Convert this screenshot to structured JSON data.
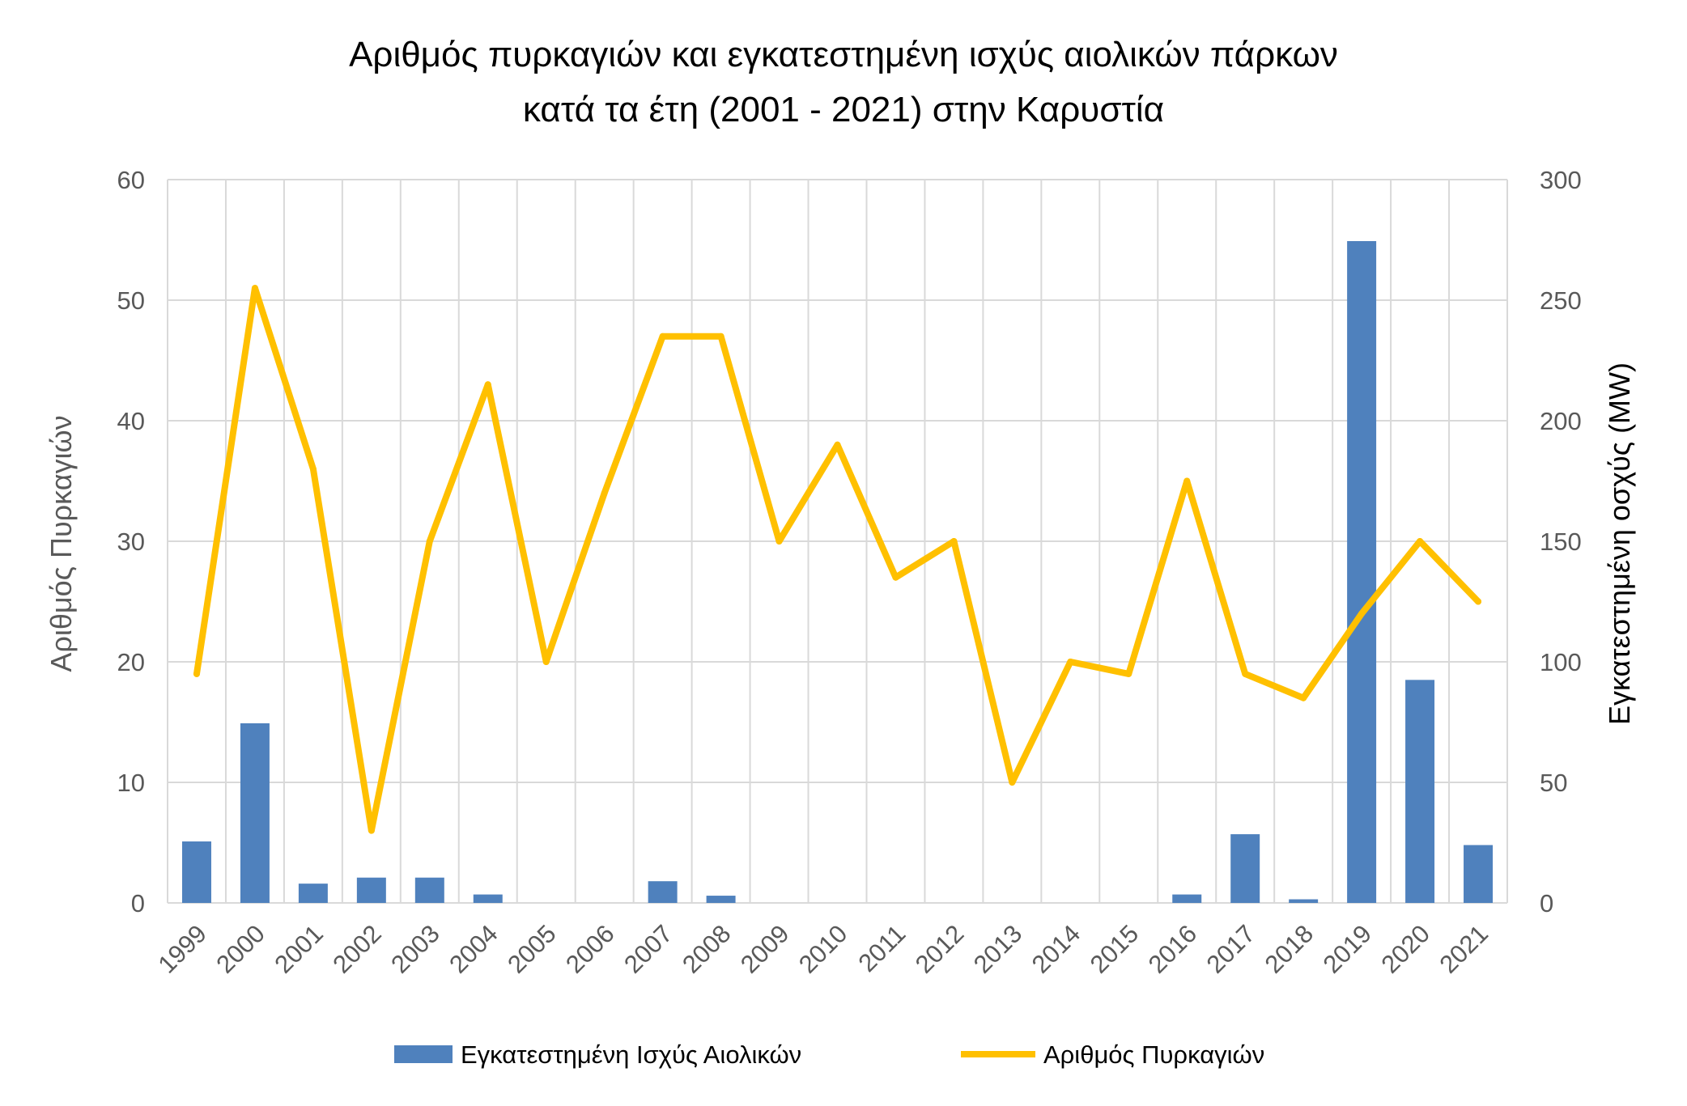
{
  "chart_data": {
    "type": "bar",
    "title_lines": [
      "Αριθμός πυρκαγιών και εγκατεστημένη ισχύς αιολικών πάρκων",
      "κατά τα έτη (2001 - 2021) στην Καρυστία"
    ],
    "categories": [
      "1999",
      "2000",
      "2001",
      "2002",
      "2003",
      "2004",
      "2005",
      "2006",
      "2007",
      "2008",
      "2009",
      "2010",
      "2011",
      "2012",
      "2013",
      "2014",
      "2015",
      "2016",
      "2017",
      "2018",
      "2019",
      "2020",
      "2021"
    ],
    "series": [
      {
        "name": "Εγκατεστημένη Ισχύς Αιολικών",
        "type": "bar",
        "axis": "right",
        "color": "#4F81BD",
        "values": [
          25.5,
          74.5,
          8,
          10.5,
          10.5,
          3.5,
          0,
          0,
          9,
          3,
          0,
          0,
          0,
          0,
          0,
          0,
          0,
          3.5,
          28.5,
          1.5,
          274.5,
          92.5,
          24
        ]
      },
      {
        "name": "Αριθμός Πυρκαγιών",
        "type": "line",
        "axis": "left",
        "color": "#FFC000",
        "values": [
          19,
          51,
          36,
          6,
          30,
          43,
          20,
          34,
          47,
          47,
          30,
          38,
          27,
          30,
          10,
          20,
          19,
          35,
          19,
          17,
          24,
          30,
          25
        ]
      }
    ],
    "ylabel_left": "Αριθμός Πυρκαγιών",
    "ylabel_right": "Εγκατεστημένη οσχύς (MW)",
    "ylim_left": [
      0,
      60
    ],
    "ylim_right": [
      0,
      300
    ],
    "yticks_left": [
      "0",
      "10",
      "20",
      "30",
      "40",
      "50",
      "60"
    ],
    "yticks_right": [
      "0",
      "50",
      "100",
      "150",
      "200",
      "250",
      "300"
    ],
    "grid": true,
    "legend": "bottom"
  }
}
